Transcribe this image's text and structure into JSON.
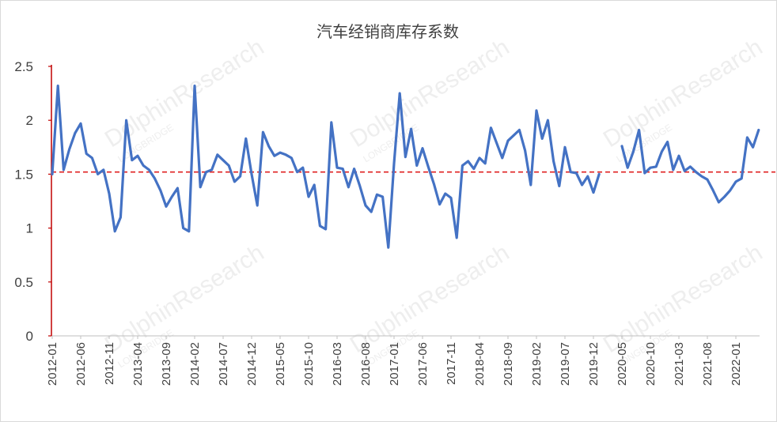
{
  "chart_data": {
    "type": "line",
    "title": "汽车经销商库存系数",
    "xlabel": "",
    "ylabel": "",
    "ylim": [
      0,
      2.5
    ],
    "yticks": [
      "0",
      "0.5",
      "1",
      "1.5",
      "2",
      "2.5"
    ],
    "grid": false,
    "legend": "none",
    "start_month": "2012-01",
    "x_tick_labels": [
      "2012-01",
      "2012-06",
      "2012-11",
      "2013-04",
      "2013-09",
      "2014-02",
      "2014-07",
      "2014-12",
      "2015-05",
      "2015-10",
      "2016-03",
      "2016-08",
      "2017-01",
      "2017-06",
      "2017-11",
      "2018-04",
      "2018-09",
      "2019-02",
      "2019-07",
      "2019-12",
      "2020-05",
      "2020-10",
      "2021-03",
      "2021-08",
      "2022-01"
    ],
    "reference_line": {
      "value": 1.52,
      "color": "#e02020",
      "style": "dashed"
    },
    "series": [
      {
        "color": "#4472c4",
        "values": [
          1.5,
          2.32,
          1.54,
          1.73,
          1.88,
          1.97,
          1.69,
          1.65,
          1.5,
          1.54,
          1.32,
          0.97,
          1.1,
          2.0,
          1.63,
          1.67,
          1.58,
          1.54,
          1.46,
          1.35,
          1.2,
          1.29,
          1.37,
          1.0,
          0.97,
          2.32,
          1.38,
          1.52,
          1.54,
          1.68,
          1.63,
          1.58,
          1.43,
          1.48,
          1.83,
          1.5,
          1.21,
          1.89,
          1.76,
          1.67,
          1.7,
          1.68,
          1.65,
          1.52,
          1.56,
          1.29,
          1.4,
          1.02,
          0.99,
          1.98,
          1.56,
          1.55,
          1.38,
          1.55,
          1.39,
          1.21,
          1.15,
          1.31,
          1.29,
          0.82,
          1.6,
          2.25,
          1.66,
          1.92,
          1.58,
          1.74,
          1.57,
          1.41,
          1.22,
          1.32,
          1.28,
          0.91,
          1.58,
          1.62,
          1.55,
          1.65,
          1.6,
          1.93,
          1.79,
          1.65,
          1.81,
          1.86,
          1.91,
          1.72,
          1.4,
          2.09,
          1.83,
          2.0,
          1.62,
          1.39,
          1.75,
          1.52,
          1.51,
          1.4,
          1.48,
          1.33,
          1.5,
          null,
          null,
          null,
          1.76,
          1.56,
          1.71,
          1.91,
          1.51,
          1.56,
          1.57,
          1.71,
          1.8,
          1.54,
          1.67,
          1.53,
          1.57,
          1.52,
          1.48,
          1.45,
          1.35,
          1.24,
          1.29,
          1.35,
          1.43,
          1.46,
          1.84,
          1.75,
          1.91
        ]
      }
    ]
  }
}
